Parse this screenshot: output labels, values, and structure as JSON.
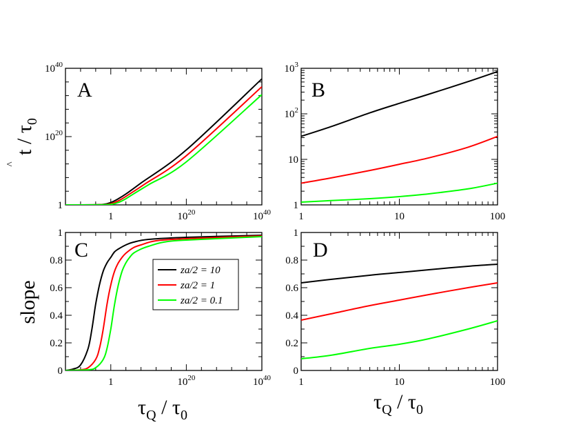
{
  "chart_data": [
    {
      "type": "line",
      "panel": "A",
      "xscale": "log10",
      "yscale": "log10",
      "xlim": [
        1e-12,
        1e+40
      ],
      "ylim": [
        1,
        1e+40
      ],
      "xticks": [
        {
          "exp": 0,
          "label": "1"
        },
        {
          "exp": 20,
          "label": "10",
          "sup": "20"
        },
        {
          "exp": 40,
          "label": "10",
          "sup": "40"
        }
      ],
      "yticks": [
        {
          "exp": 0,
          "label": "1"
        },
        {
          "exp": 20,
          "label": "10",
          "sup": "20"
        },
        {
          "exp": 40,
          "label": "10",
          "sup": "40"
        }
      ],
      "ylabel": "t̂ / τ0",
      "series": [
        {
          "name": "za/2 = 10",
          "color": "#000000",
          "log_x": [
            -12,
            -5,
            -2,
            0,
            2,
            4,
            8,
            20,
            40
          ],
          "log_y": [
            0,
            0.02,
            0.15,
            0.7,
            1.8,
            3.2,
            6.4,
            16.1,
            36.9
          ]
        },
        {
          "name": "za/2 = 1",
          "color": "#ff0000",
          "log_x": [
            -12,
            -4,
            -1,
            1,
            3,
            5,
            9,
            20,
            40
          ],
          "log_y": [
            0,
            0.02,
            0.15,
            0.7,
            1.8,
            3.2,
            6.1,
            14.4,
            34.6
          ]
        },
        {
          "name": "za/2 = 0.1",
          "color": "#00ff00",
          "log_x": [
            -12,
            -3,
            0,
            2,
            4,
            6,
            10,
            20,
            40
          ],
          "log_y": [
            0,
            0.02,
            0.15,
            0.7,
            1.8,
            3.2,
            5.9,
            12.6,
            32.3
          ]
        }
      ]
    },
    {
      "type": "line",
      "panel": "B",
      "xscale": "log10",
      "yscale": "log10",
      "xlim": [
        1,
        100
      ],
      "ylim": [
        1,
        1000
      ],
      "xticks": [
        {
          "exp": 0,
          "label": "1"
        },
        {
          "exp": 1,
          "label": "10"
        },
        {
          "exp": 2,
          "label": "100"
        }
      ],
      "yticks": [
        {
          "exp": 0,
          "label": "1"
        },
        {
          "exp": 1,
          "label": "10"
        },
        {
          "exp": 2,
          "label": "10",
          "sup": "2"
        },
        {
          "exp": 3,
          "label": "10",
          "sup": "3"
        }
      ],
      "series": [
        {
          "name": "za/2 = 10",
          "color": "#000000",
          "x": [
            1,
            2,
            5,
            10,
            20,
            50,
            100
          ],
          "y": [
            32,
            52,
            105,
            170,
            270,
            510,
            850
          ]
        },
        {
          "name": "za/2 = 1",
          "color": "#ff0000",
          "x": [
            1,
            2,
            5,
            10,
            20,
            50,
            100
          ],
          "y": [
            3.0,
            3.9,
            5.7,
            7.8,
            10.8,
            18.5,
            32
          ]
        },
        {
          "name": "za/2 = 0.1",
          "color": "#00ff00",
          "x": [
            1,
            2,
            5,
            10,
            20,
            50,
            100
          ],
          "y": [
            1.15,
            1.24,
            1.37,
            1.52,
            1.75,
            2.25,
            3.0
          ]
        }
      ]
    },
    {
      "type": "line",
      "panel": "C",
      "xscale": "log10",
      "yscale": "linear",
      "xlim": [
        1e-12,
        1e+40
      ],
      "ylim": [
        0,
        1
      ],
      "xticks": [
        {
          "exp": 0,
          "label": "1"
        },
        {
          "exp": 20,
          "label": "10",
          "sup": "20"
        },
        {
          "exp": 40,
          "label": "10",
          "sup": "40"
        }
      ],
      "yticks": [
        {
          "v": 0,
          "label": "0"
        },
        {
          "v": 0.2,
          "label": "0.2"
        },
        {
          "v": 0.4,
          "label": "0.4"
        },
        {
          "v": 0.6,
          "label": "0.6"
        },
        {
          "v": 0.8,
          "label": "0.8"
        },
        {
          "v": 1,
          "label": "1"
        }
      ],
      "ylabel": "slope",
      "xlabel": "τQ / τ0",
      "series": [
        {
          "name": "za/2 = 10",
          "color": "#000000",
          "log_x": [
            -12,
            -10,
            -8,
            -6,
            -5,
            -4,
            -3,
            -2,
            -1,
            0,
            1,
            2,
            4,
            6,
            10,
            20,
            40
          ],
          "y": [
            0,
            0.01,
            0.04,
            0.16,
            0.3,
            0.48,
            0.62,
            0.72,
            0.78,
            0.82,
            0.86,
            0.88,
            0.91,
            0.93,
            0.95,
            0.965,
            0.98
          ]
        },
        {
          "name": "za/2 = 1",
          "color": "#ff0000",
          "log_x": [
            -12,
            -8,
            -6,
            -4,
            -3,
            -2,
            -1,
            0,
            1,
            2,
            3,
            4,
            6,
            8,
            12,
            20,
            40
          ],
          "y": [
            0,
            0.005,
            0.02,
            0.08,
            0.16,
            0.3,
            0.48,
            0.62,
            0.72,
            0.78,
            0.82,
            0.85,
            0.89,
            0.91,
            0.94,
            0.955,
            0.975
          ]
        },
        {
          "name": "za/2 = 0.1",
          "color": "#00ff00",
          "log_x": [
            -12,
            -6,
            -4,
            -2,
            -1,
            0,
            1,
            2,
            3,
            4,
            5,
            6,
            8,
            10,
            14,
            20,
            40
          ],
          "y": [
            0,
            0.005,
            0.02,
            0.08,
            0.16,
            0.3,
            0.48,
            0.62,
            0.72,
            0.78,
            0.82,
            0.85,
            0.88,
            0.9,
            0.93,
            0.945,
            0.97
          ]
        }
      ]
    },
    {
      "type": "line",
      "panel": "D",
      "xscale": "log10",
      "yscale": "linear",
      "xlim": [
        1,
        100
      ],
      "ylim": [
        0,
        1
      ],
      "xticks": [
        {
          "exp": 0,
          "label": "1"
        },
        {
          "exp": 1,
          "label": "10"
        },
        {
          "exp": 2,
          "label": "100"
        }
      ],
      "yticks": [
        {
          "v": 0,
          "label": "0"
        },
        {
          "v": 0.2,
          "label": "0.2"
        },
        {
          "v": 0.4,
          "label": "0.4"
        },
        {
          "v": 0.6,
          "label": "0.6"
        },
        {
          "v": 0.8,
          "label": "0.8"
        },
        {
          "v": 1,
          "label": "1"
        }
      ],
      "xlabel": "τQ / τ0",
      "series": [
        {
          "name": "za/2 = 10",
          "color": "#000000",
          "x": [
            1,
            2,
            5,
            10,
            20,
            50,
            100
          ],
          "y": [
            0.635,
            0.66,
            0.69,
            0.71,
            0.73,
            0.755,
            0.77
          ]
        },
        {
          "name": "za/2 = 1",
          "color": "#ff0000",
          "x": [
            1,
            2,
            5,
            10,
            20,
            50,
            100
          ],
          "y": [
            0.365,
            0.41,
            0.47,
            0.51,
            0.55,
            0.6,
            0.635
          ]
        },
        {
          "name": "za/2 = 0.1",
          "color": "#00ff00",
          "x": [
            1,
            2,
            5,
            10,
            20,
            50,
            100
          ],
          "y": [
            0.085,
            0.11,
            0.16,
            0.19,
            0.23,
            0.3,
            0.36
          ]
        }
      ]
    }
  ],
  "panel_letters": [
    "A",
    "B",
    "C",
    "D"
  ],
  "legend": {
    "placement": "inside panel C, right",
    "entries": [
      {
        "label": "za/2 = 10",
        "color": "#000000"
      },
      {
        "label": "za/2 = 1",
        "color": "#ff0000"
      },
      {
        "label": "za/2 = 0.1",
        "color": "#00ff00"
      }
    ]
  },
  "axis_titles": {
    "top_left_y": {
      "main": "t",
      "hat": "^",
      "sep": " / τ",
      "sub": "0"
    },
    "bottom_left_y": {
      "main": "slope"
    },
    "bottom_left_x": {
      "main": "τ",
      "sub1": "Q",
      "sep": " / τ",
      "sub2": "0"
    },
    "bottom_right_x": {
      "main": "τ",
      "sub1": "Q",
      "sep": " / τ",
      "sub2": "0"
    }
  }
}
